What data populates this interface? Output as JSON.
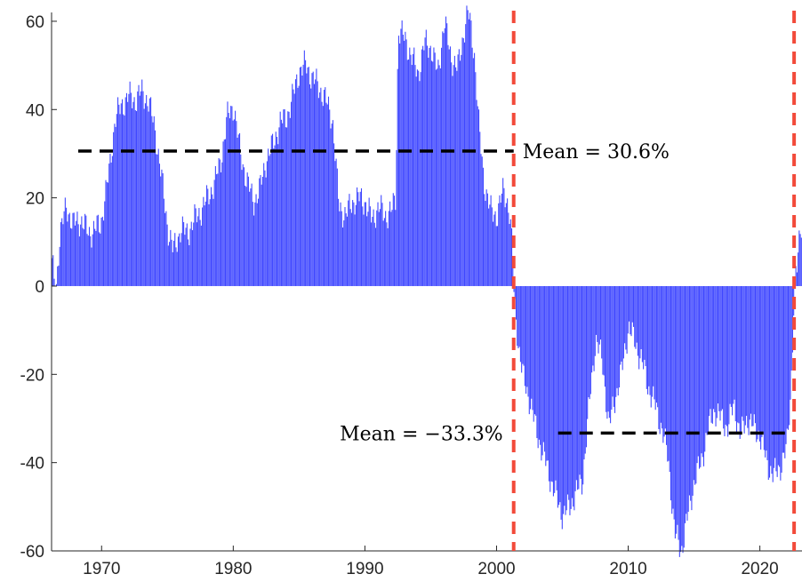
{
  "chart_data": {
    "type": "bar",
    "title": "",
    "xlabel": "",
    "ylabel": "",
    "xlim": [
      1966.2,
      2023.2
    ],
    "ylim": [
      -60,
      62
    ],
    "x_ticks": [
      1970,
      1980,
      1990,
      2000,
      2010,
      2020
    ],
    "y_ticks": [
      60,
      40,
      20,
      0,
      -20,
      -40,
      -60
    ],
    "y_tick_labels": [
      "60",
      "40",
      "20",
      "0",
      "-20",
      "-40",
      "-60"
    ],
    "bar_color": "#3f47ff",
    "grid": false,
    "profile": [
      [
        1966.2,
        5
      ],
      [
        1966.5,
        -1
      ],
      [
        1966.8,
        12
      ],
      [
        1967.3,
        18
      ],
      [
        1967.8,
        14
      ],
      [
        1968.4,
        15
      ],
      [
        1969.0,
        12
      ],
      [
        1969.5,
        13
      ],
      [
        1969.9,
        14
      ],
      [
        1970.5,
        25
      ],
      [
        1971.0,
        38
      ],
      [
        1971.5,
        41
      ],
      [
        1972.0,
        43
      ],
      [
        1972.5,
        42
      ],
      [
        1973.0,
        44
      ],
      [
        1973.5,
        42
      ],
      [
        1974.0,
        36
      ],
      [
        1974.5,
        25
      ],
      [
        1975.0,
        13
      ],
      [
        1975.4,
        8
      ],
      [
        1976.0,
        13
      ],
      [
        1976.5,
        12
      ],
      [
        1977.0,
        15
      ],
      [
        1977.5,
        17
      ],
      [
        1978.0,
        20
      ],
      [
        1978.5,
        23
      ],
      [
        1979.0,
        28
      ],
      [
        1979.5,
        38
      ],
      [
        1980.0,
        41
      ],
      [
        1980.5,
        30
      ],
      [
        1981.0,
        24
      ],
      [
        1981.5,
        19
      ],
      [
        1982.0,
        22
      ],
      [
        1982.5,
        29
      ],
      [
        1983.0,
        32
      ],
      [
        1983.5,
        37
      ],
      [
        1984.0,
        38
      ],
      [
        1984.5,
        43
      ],
      [
        1985.0,
        49
      ],
      [
        1985.5,
        50
      ],
      [
        1986.0,
        47
      ],
      [
        1986.5,
        45
      ],
      [
        1987.0,
        42
      ],
      [
        1987.5,
        38
      ],
      [
        1988.0,
        18
      ],
      [
        1988.5,
        16
      ],
      [
        1989.0,
        19
      ],
      [
        1989.5,
        20
      ],
      [
        1990.0,
        19
      ],
      [
        1990.5,
        15
      ],
      [
        1991.0,
        18
      ],
      [
        1991.5,
        16
      ],
      [
        1992.0,
        17
      ],
      [
        1992.3,
        20
      ],
      [
        1992.5,
        58
      ],
      [
        1993.0,
        56
      ],
      [
        1993.5,
        52
      ],
      [
        1994.0,
        48
      ],
      [
        1994.5,
        55
      ],
      [
        1995.0,
        54
      ],
      [
        1995.5,
        48
      ],
      [
        1996.0,
        60
      ],
      [
        1996.5,
        52
      ],
      [
        1997.0,
        49
      ],
      [
        1997.5,
        58
      ],
      [
        1997.8,
        62
      ],
      [
        1998.0,
        59
      ],
      [
        1998.3,
        52
      ],
      [
        1998.6,
        37
      ],
      [
        1999.0,
        24
      ],
      [
        1999.5,
        17
      ],
      [
        2000.0,
        16
      ],
      [
        2000.5,
        22
      ],
      [
        2000.9,
        18
      ],
      [
        2001.2,
        7
      ],
      [
        2001.3,
        -3
      ],
      [
        2001.7,
        -15
      ],
      [
        2002.0,
        -21
      ],
      [
        2002.5,
        -26
      ],
      [
        2003.0,
        -33
      ],
      [
        2003.5,
        -38
      ],
      [
        2004.0,
        -43
      ],
      [
        2004.5,
        -48
      ],
      [
        2005.0,
        -52
      ],
      [
        2005.5,
        -50
      ],
      [
        2006.0,
        -47
      ],
      [
        2006.5,
        -44
      ],
      [
        2007.0,
        -27
      ],
      [
        2007.5,
        -12
      ],
      [
        2008.0,
        -17
      ],
      [
        2008.5,
        -32
      ],
      [
        2009.0,
        -25
      ],
      [
        2009.5,
        -19
      ],
      [
        2010.0,
        -9
      ],
      [
        2010.5,
        -13
      ],
      [
        2011.0,
        -17
      ],
      [
        2011.5,
        -23
      ],
      [
        2012.0,
        -27
      ],
      [
        2012.5,
        -32
      ],
      [
        2013.0,
        -39
      ],
      [
        2013.5,
        -56
      ],
      [
        2014.0,
        -60
      ],
      [
        2014.5,
        -52
      ],
      [
        2015.0,
        -44
      ],
      [
        2015.5,
        -40
      ],
      [
        2016.0,
        -33
      ],
      [
        2016.5,
        -28
      ],
      [
        2017.0,
        -30
      ],
      [
        2017.5,
        -32
      ],
      [
        2018.0,
        -27
      ],
      [
        2018.5,
        -34
      ],
      [
        2019.0,
        -30
      ],
      [
        2019.5,
        -32
      ],
      [
        2020.0,
        -34
      ],
      [
        2020.5,
        -40
      ],
      [
        2021.0,
        -43
      ],
      [
        2021.5,
        -41
      ],
      [
        2022.0,
        -37
      ],
      [
        2022.3,
        -25
      ],
      [
        2022.5,
        -8
      ],
      [
        2022.6,
        1
      ],
      [
        2022.8,
        4
      ],
      [
        2023.0,
        12
      ],
      [
        2023.2,
        16
      ]
    ],
    "reference_lines": [
      {
        "orientation": "vertical",
        "x": 2001.3,
        "color": "#f24a3a",
        "style": "dashed"
      },
      {
        "orientation": "vertical",
        "x": 2022.6,
        "color": "#f24a3a",
        "style": "dashed"
      }
    ],
    "mean_lines": [
      {
        "x0": 1966.2,
        "x1": 2001.3,
        "y": 30.6,
        "label": "Mean = 30.6%",
        "label_side": "right"
      },
      {
        "x0": 2001.3,
        "x1": 2022.6,
        "y": -33.3,
        "label": "Mean = −33.3%",
        "label_side": "left"
      }
    ]
  }
}
